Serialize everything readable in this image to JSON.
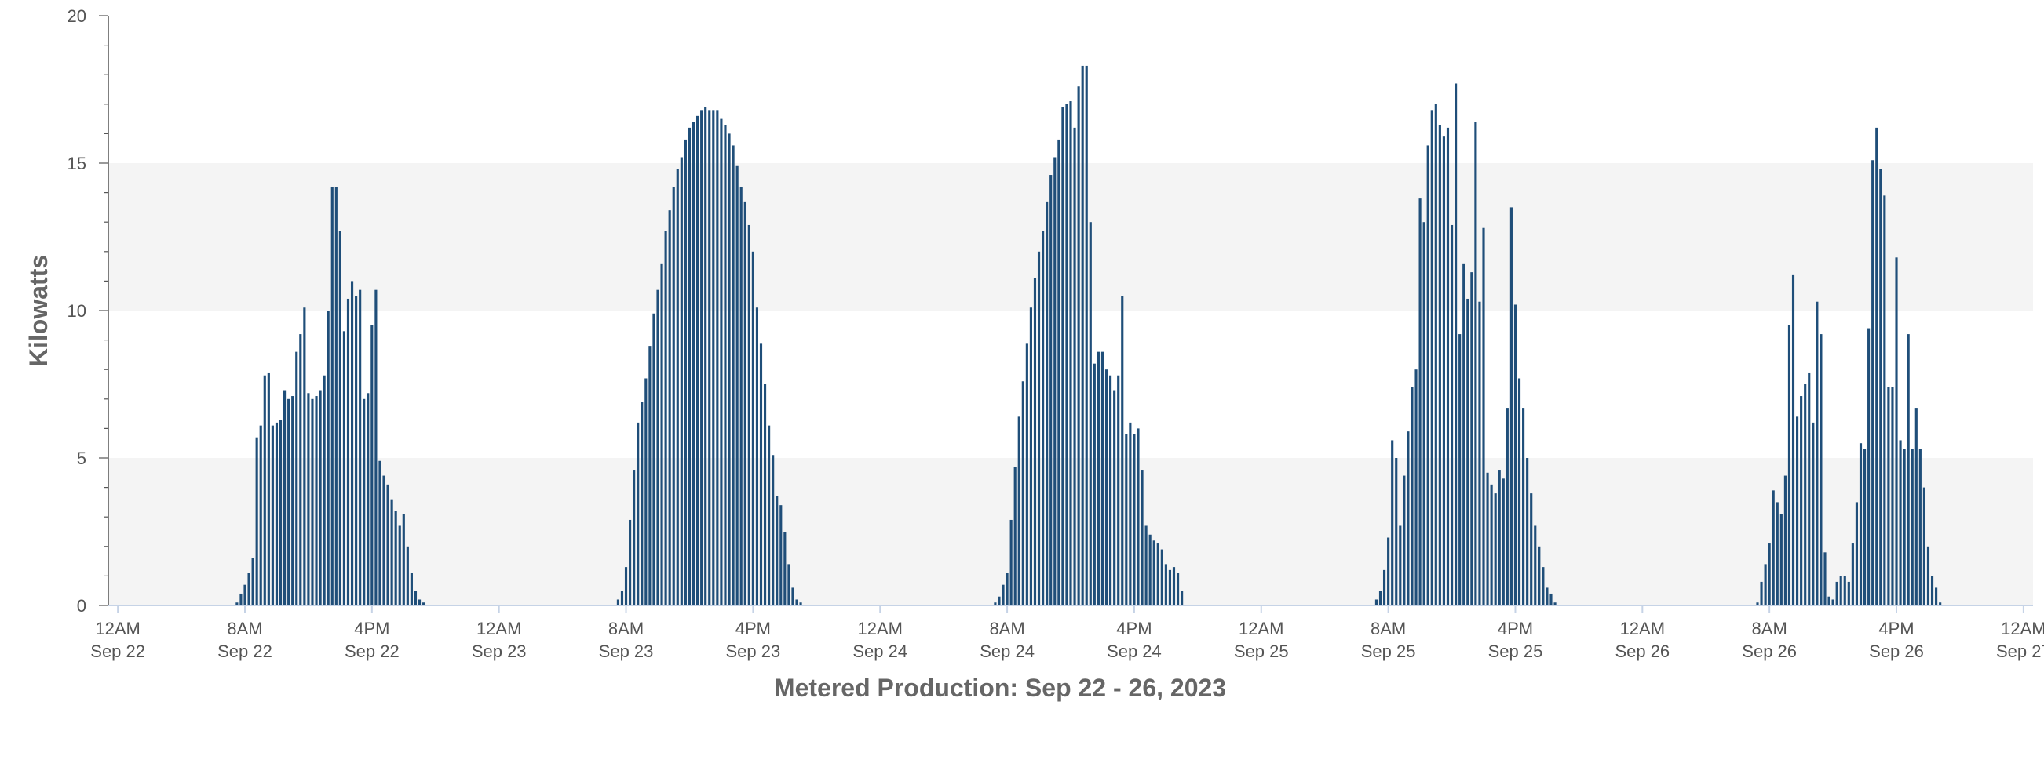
{
  "chart_data": {
    "type": "bar",
    "title": "",
    "xlabel": "Metered Production: Sep 22 - 26, 2023",
    "ylabel": "Kilowatts",
    "ylim": [
      0,
      20
    ],
    "y_ticks": [
      "0",
      "5",
      "10",
      "15",
      "20"
    ],
    "y_tick_values": [
      0,
      5,
      10,
      15,
      20
    ],
    "x_unit": "hours from 12AM Sep 22",
    "xlim": [
      -0.6,
      120.6
    ],
    "x_ticks": [
      {
        "value": 0,
        "line1": "12AM",
        "line2": "Sep 22"
      },
      {
        "value": 8,
        "line1": "8AM",
        "line2": "Sep 22"
      },
      {
        "value": 16,
        "line1": "4PM",
        "line2": "Sep 22"
      },
      {
        "value": 24,
        "line1": "12AM",
        "line2": "Sep 23"
      },
      {
        "value": 32,
        "line1": "8AM",
        "line2": "Sep 23"
      },
      {
        "value": 40,
        "line1": "4PM",
        "line2": "Sep 23"
      },
      {
        "value": 48,
        "line1": "12AM",
        "line2": "Sep 24"
      },
      {
        "value": 56,
        "line1": "8AM",
        "line2": "Sep 24"
      },
      {
        "value": 64,
        "line1": "4PM",
        "line2": "Sep 24"
      },
      {
        "value": 72,
        "line1": "12AM",
        "line2": "Sep 25"
      },
      {
        "value": 80,
        "line1": "8AM",
        "line2": "Sep 25"
      },
      {
        "value": 88,
        "line1": "4PM",
        "line2": "Sep 25"
      },
      {
        "value": 96,
        "line1": "12AM",
        "line2": "Sep 26"
      },
      {
        "value": 104,
        "line1": "8AM",
        "line2": "Sep 26"
      },
      {
        "value": 112,
        "line1": "4PM",
        "line2": "Sep 26"
      },
      {
        "value": 120,
        "line1": "12AM",
        "line2": "Sep 27"
      }
    ],
    "grid": "alternating horizontal bands",
    "colors": {
      "bar": "#1f4e79",
      "band": "#f4f4f4",
      "axis": "#555555",
      "baseline": "#c6d3e6"
    },
    "interval_hours": 0.25,
    "days": [
      {
        "day": "Sep 22",
        "start_hour": 7.5,
        "values": [
          0.1,
          0.4,
          0.7,
          1.1,
          1.6,
          5.7,
          6.1,
          7.8,
          7.9,
          6.1,
          6.2,
          6.3,
          7.3,
          7.0,
          7.1,
          8.6,
          9.2,
          10.1,
          7.2,
          7.0,
          7.1,
          7.3,
          7.8,
          10.0,
          14.2,
          14.2,
          12.7,
          9.3,
          10.4,
          11.0,
          10.5,
          10.7,
          7.0,
          7.2,
          9.5,
          10.7,
          4.9,
          4.4,
          4.1,
          3.6,
          3.2,
          2.7,
          3.1,
          2.0,
          1.1,
          0.5,
          0.2,
          0.1
        ]
      },
      {
        "day": "Sep 23",
        "start_hour": 31.5,
        "values": [
          0.2,
          0.5,
          1.3,
          2.9,
          4.6,
          6.2,
          6.9,
          7.7,
          8.8,
          9.9,
          10.7,
          11.6,
          12.7,
          13.4,
          14.2,
          14.8,
          15.2,
          15.8,
          16.2,
          16.4,
          16.6,
          16.8,
          16.9,
          16.8,
          16.8,
          16.8,
          16.5,
          16.3,
          16.0,
          15.6,
          14.9,
          14.2,
          13.7,
          12.9,
          12.0,
          10.1,
          8.9,
          7.5,
          6.1,
          5.1,
          3.7,
          3.4,
          2.5,
          1.4,
          0.6,
          0.2,
          0.1
        ]
      },
      {
        "day": "Sep 24",
        "start_hour": 55.25,
        "values": [
          0.1,
          0.3,
          0.7,
          1.1,
          2.9,
          4.7,
          6.4,
          7.6,
          8.9,
          10.1,
          11.1,
          12.0,
          12.7,
          13.7,
          14.6,
          15.2,
          15.8,
          16.9,
          17.0,
          17.1,
          16.2,
          17.6,
          18.3,
          18.3,
          13.0,
          8.2,
          8.6,
          8.6,
          8.0,
          7.8,
          7.3,
          7.8,
          10.5,
          5.8,
          6.2,
          5.8,
          6.0,
          4.6,
          2.7,
          2.4,
          2.2,
          2.1,
          1.9,
          1.4,
          1.2,
          1.3,
          1.1,
          0.5
        ]
      },
      {
        "day": "Sep 25",
        "start_hour": 79.25,
        "values": [
          0.2,
          0.5,
          1.2,
          2.3,
          5.6,
          5.0,
          2.7,
          4.4,
          5.9,
          7.4,
          8.0,
          13.8,
          13.0,
          15.6,
          16.8,
          17.0,
          16.3,
          15.9,
          16.2,
          12.9,
          17.7,
          9.2,
          11.6,
          10.4,
          11.3,
          16.4,
          10.3,
          12.8,
          4.5,
          4.1,
          3.8,
          4.6,
          4.3,
          6.7,
          13.5,
          10.2,
          7.7,
          6.7,
          5.0,
          3.8,
          2.7,
          2.0,
          1.3,
          0.6,
          0.4,
          0.1
        ]
      },
      {
        "day": "Sep 26",
        "start_hour": 103.25,
        "values": [
          0.1,
          0.8,
          1.4,
          2.1,
          3.9,
          3.5,
          3.1,
          4.4,
          9.5,
          11.2,
          6.4,
          7.1,
          7.5,
          7.9,
          6.2,
          10.3,
          9.2,
          1.8,
          0.3,
          0.2,
          0.8,
          1.0,
          1.0,
          0.8,
          2.1,
          3.5,
          5.5,
          5.3,
          9.4,
          15.1,
          16.2,
          14.8,
          13.9,
          7.4,
          7.4,
          11.8,
          5.6,
          5.3,
          9.2,
          5.3,
          6.7,
          5.3,
          4.0,
          2.0,
          1.0,
          0.6,
          0.1
        ]
      }
    ]
  }
}
